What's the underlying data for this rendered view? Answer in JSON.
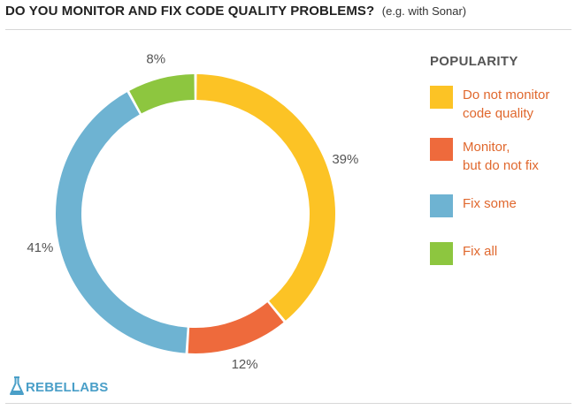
{
  "title": "DO YOU MONITOR AND FIX CODE QUALITY PROBLEMS?",
  "subtitle": "(e.g. with Sonar)",
  "legend": {
    "title": "POPULARITY",
    "items": [
      {
        "line1": "Do not monitor",
        "line2": "code quality",
        "color": "#fcc325"
      },
      {
        "line1": "Monitor,",
        "line2": "but do not fix",
        "color": "#ee6a3c"
      },
      {
        "line1": "Fix some",
        "line2": "",
        "color": "#6eb3d2"
      },
      {
        "line1": "Fix all",
        "line2": "",
        "color": "#8dc63f"
      }
    ]
  },
  "chart_data": {
    "type": "pie",
    "style": "donut",
    "categories": [
      "Do not monitor code quality",
      "Monitor, but do not fix",
      "Fix some",
      "Fix all"
    ],
    "values": [
      39,
      12,
      41,
      8
    ],
    "value_labels": [
      "39%",
      "12%",
      "41%",
      "8%"
    ],
    "colors": [
      "#fcc325",
      "#ee6a3c",
      "#6eb3d2",
      "#8dc63f"
    ],
    "legend_position": "right"
  },
  "logo": {
    "text": "REBELLABS"
  }
}
